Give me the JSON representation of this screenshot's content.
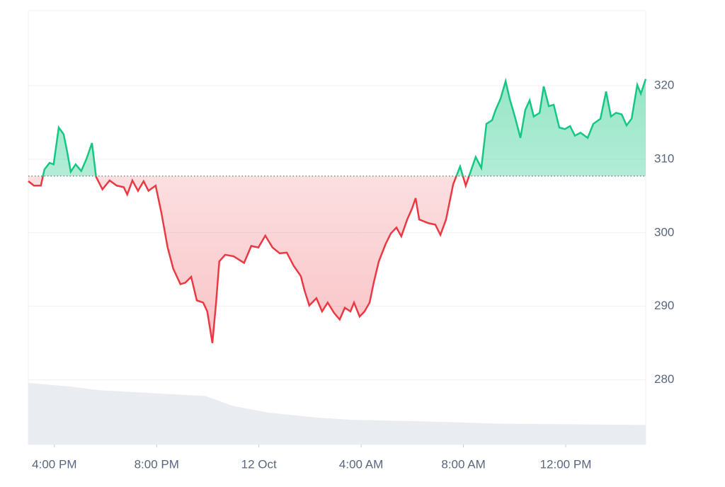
{
  "chart_data": {
    "type": "line",
    "x": [
      -1.02,
      -0.8,
      -0.53,
      -0.39,
      -0.19,
      -0.03,
      0.17,
      0.36,
      0.5,
      0.64,
      0.83,
      1.05,
      1.25,
      1.47,
      1.63,
      1.88,
      2.16,
      2.44,
      2.71,
      2.85,
      3.05,
      3.27,
      3.49,
      3.68,
      3.96,
      4.18,
      4.43,
      4.65,
      4.93,
      5.12,
      5.35,
      5.57,
      5.82,
      5.98,
      6.18,
      6.32,
      6.45,
      6.68,
      7.01,
      7.42,
      7.7,
      7.98,
      8.25,
      8.53,
      8.81,
      9.09,
      9.36,
      9.64,
      9.78,
      9.97,
      10.25,
      10.47,
      10.69,
      10.94,
      11.16,
      11.36,
      11.58,
      11.72,
      11.94,
      12.13,
      12.33,
      12.49,
      12.69,
      12.96,
      13.16,
      13.38,
      13.57,
      13.8,
      13.99,
      14.13,
      14.27,
      14.63,
      14.9,
      15.1,
      15.32,
      15.6,
      15.87,
      16.09,
      16.23,
      16.48,
      16.7,
      16.9,
      17.12,
      17.26,
      17.45,
      17.65,
      17.81,
      18.01,
      18.23,
      18.42,
      18.59,
      18.75,
      18.98,
      19.14,
      19.34,
      19.53,
      19.75,
      19.97,
      20.17,
      20.36,
      20.58,
      20.86,
      21.08,
      21.36,
      21.58,
      21.77,
      21.97,
      22.19,
      22.38,
      22.58,
      22.8,
      22.94,
      23.13
    ],
    "values": [
      307.0,
      306.4,
      306.4,
      308.6,
      309.5,
      309.3,
      314.3,
      313.4,
      311.0,
      308.3,
      309.3,
      308.4,
      310.0,
      312.2,
      307.6,
      305.9,
      307.1,
      306.4,
      306.2,
      305.2,
      307.1,
      305.7,
      307.0,
      305.7,
      306.4,
      302.8,
      298.0,
      295.1,
      293.0,
      293.2,
      294.0,
      290.8,
      290.5,
      289.3,
      285.0,
      290.3,
      296.1,
      297.0,
      296.8,
      295.9,
      298.2,
      298.0,
      299.6,
      298.0,
      297.2,
      297.3,
      295.5,
      294.1,
      292.2,
      290.1,
      291.1,
      289.3,
      290.5,
      289.1,
      288.2,
      289.8,
      289.3,
      290.5,
      288.6,
      289.3,
      290.5,
      293.2,
      296.1,
      298.5,
      299.9,
      300.7,
      299.5,
      301.8,
      303.3,
      304.7,
      301.8,
      301.3,
      301.1,
      299.7,
      301.8,
      306.6,
      309.0,
      306.4,
      307.8,
      310.3,
      308.8,
      314.8,
      315.3,
      316.7,
      318.2,
      320.6,
      318.2,
      315.8,
      312.9,
      316.7,
      318.0,
      315.8,
      316.3,
      319.9,
      317.2,
      317.4,
      314.3,
      314.1,
      314.5,
      313.2,
      313.6,
      312.9,
      314.8,
      315.5,
      319.2,
      315.8,
      316.3,
      316.1,
      314.6,
      315.5,
      320.1,
      318.9,
      320.9
    ],
    "baseline": 307.7,
    "up_color": "#16c784",
    "down_color": "#ea3943",
    "volume": {
      "x": [
        -1.02,
        0.64,
        1.75,
        5.9,
        7.01,
        8.39,
        10.33,
        11.72,
        14.49,
        17.26,
        20.03,
        23.13
      ],
      "values": [
        85,
        80,
        75,
        67,
        53,
        44,
        37,
        34,
        32,
        29,
        28,
        27
      ],
      "color": "#e9edf2"
    },
    "xlim": [
      -1.02,
      23.13
    ],
    "xticks": [
      {
        "value": 0,
        "label": "4:00 PM"
      },
      {
        "value": 4,
        "label": "8:00 PM"
      },
      {
        "value": 8,
        "label": "12 Oct"
      },
      {
        "value": 12,
        "label": "4:00 AM"
      },
      {
        "value": 16,
        "label": "8:00 AM"
      },
      {
        "value": 20,
        "label": "12:00 PM"
      }
    ],
    "ylim": [
      271.2,
      330.2
    ],
    "yticks": [
      280,
      290,
      300,
      310,
      320
    ],
    "grid": true
  }
}
